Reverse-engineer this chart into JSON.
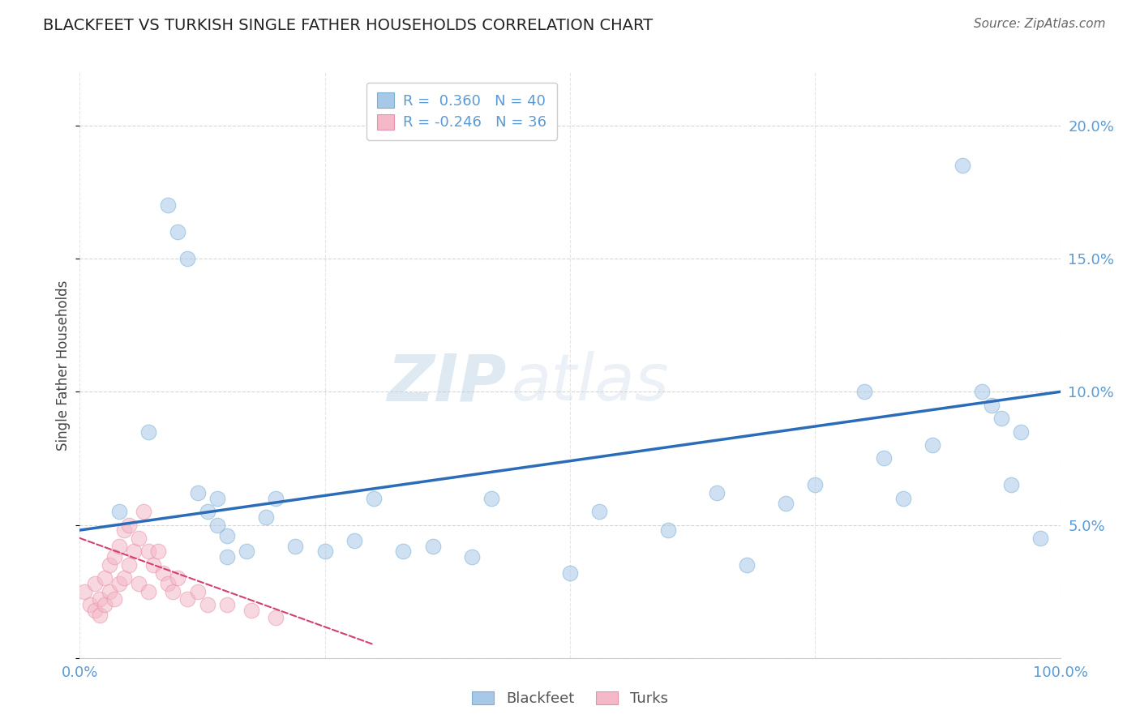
{
  "title": "BLACKFEET VS TURKISH SINGLE FATHER HOUSEHOLDS CORRELATION CHART",
  "source_text": "Source: ZipAtlas.com",
  "ylabel": "Single Father Households",
  "watermark_zip": "ZIP",
  "watermark_atlas": "atlas",
  "legend_blue_r": " 0.360",
  "legend_blue_n": "40",
  "legend_pink_r": "-0.246",
  "legend_pink_n": "36",
  "legend_labels": [
    "Blackfeet",
    "Turks"
  ],
  "xlim": [
    0.0,
    1.0
  ],
  "ylim": [
    0.0,
    0.22
  ],
  "yticks": [
    0.0,
    0.05,
    0.1,
    0.15,
    0.2
  ],
  "ytick_labels": [
    "",
    "5.0%",
    "10.0%",
    "15.0%",
    "20.0%"
  ],
  "xticks": [
    0.0,
    0.25,
    0.5,
    0.75,
    1.0
  ],
  "xtick_labels": [
    "0.0%",
    "",
    "",
    "",
    "100.0%"
  ],
  "blue_color": "#a8c8e8",
  "blue_edge_color": "#7aafd4",
  "pink_color": "#f4b8c8",
  "pink_edge_color": "#e890a8",
  "blue_line_color": "#2b6cb8",
  "pink_line_color": "#d44070",
  "axis_tick_color": "#5b9bd5",
  "grid_color": "#cccccc",
  "background_color": "#ffffff",
  "title_color": "#222222",
  "source_color": "#666666",
  "ylabel_color": "#444444",
  "blue_x": [
    0.04,
    0.07,
    0.09,
    0.1,
    0.11,
    0.12,
    0.13,
    0.14,
    0.14,
    0.15,
    0.15,
    0.17,
    0.19,
    0.2,
    0.22,
    0.25,
    0.28,
    0.3,
    0.33,
    0.36,
    0.4,
    0.42,
    0.5,
    0.53,
    0.6,
    0.65,
    0.68,
    0.72,
    0.75,
    0.8,
    0.82,
    0.84,
    0.87,
    0.9,
    0.92,
    0.93,
    0.94,
    0.95,
    0.96,
    0.98
  ],
  "blue_y": [
    0.055,
    0.085,
    0.17,
    0.16,
    0.15,
    0.062,
    0.055,
    0.05,
    0.06,
    0.038,
    0.046,
    0.04,
    0.053,
    0.06,
    0.042,
    0.04,
    0.044,
    0.06,
    0.04,
    0.042,
    0.038,
    0.06,
    0.032,
    0.055,
    0.048,
    0.062,
    0.035,
    0.058,
    0.065,
    0.1,
    0.075,
    0.06,
    0.08,
    0.185,
    0.1,
    0.095,
    0.09,
    0.065,
    0.085,
    0.045
  ],
  "pink_x": [
    0.005,
    0.01,
    0.015,
    0.015,
    0.02,
    0.02,
    0.025,
    0.025,
    0.03,
    0.03,
    0.035,
    0.035,
    0.04,
    0.04,
    0.045,
    0.045,
    0.05,
    0.05,
    0.055,
    0.06,
    0.06,
    0.065,
    0.07,
    0.07,
    0.075,
    0.08,
    0.085,
    0.09,
    0.095,
    0.1,
    0.11,
    0.12,
    0.13,
    0.15,
    0.175,
    0.2
  ],
  "pink_y": [
    0.025,
    0.02,
    0.028,
    0.018,
    0.022,
    0.016,
    0.03,
    0.02,
    0.035,
    0.025,
    0.038,
    0.022,
    0.042,
    0.028,
    0.048,
    0.03,
    0.05,
    0.035,
    0.04,
    0.045,
    0.028,
    0.055,
    0.04,
    0.025,
    0.035,
    0.04,
    0.032,
    0.028,
    0.025,
    0.03,
    0.022,
    0.025,
    0.02,
    0.02,
    0.018,
    0.015
  ],
  "blue_trend_x0": 0.0,
  "blue_trend_x1": 1.0,
  "blue_trend_y0": 0.048,
  "blue_trend_y1": 0.1,
  "pink_trend_x0": 0.0,
  "pink_trend_x1": 0.3,
  "pink_trend_y0": 0.045,
  "pink_trend_y1": 0.005,
  "marker_size": 180,
  "marker_alpha": 0.55
}
